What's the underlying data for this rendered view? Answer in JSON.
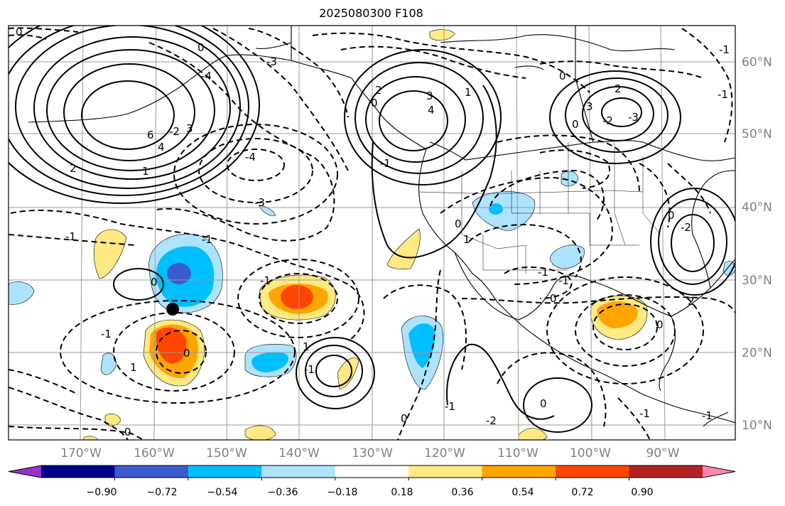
{
  "title": "2025080300 F108",
  "lon_labels": [
    "170°W",
    "160°W",
    "150°W",
    "140°W",
    "130°W",
    "120°W",
    "110°W",
    "100°W",
    "90°W"
  ],
  "lat_labels": [
    "60°N",
    "50°N",
    "40°N",
    "30°N",
    "20°N",
    "10°N"
  ],
  "colorbar": {
    "tick_labels": [
      "−0.90",
      "−0.72",
      "−0.54",
      "−0.36",
      "−0.18",
      "0.18",
      "0.36",
      "0.54",
      "0.72",
      "0.90"
    ],
    "colors": [
      "#9932cc",
      "#00008b",
      "#3a5bcc",
      "#00bfff",
      "#ade3ff",
      "#ffffff",
      "#ffe983",
      "#ffa500",
      "#ff4500",
      "#b22222",
      "#ff88aa"
    ]
  },
  "contour_labels": [
    "0",
    "-1",
    "-3",
    "-2",
    "-4",
    "2",
    "4",
    "6",
    "3",
    "1",
    "0",
    "-1",
    "-3",
    "-4",
    "1",
    "3",
    "4",
    "2",
    "0",
    "-1",
    "-3",
    "-2",
    "2",
    "3",
    "-1",
    "0",
    "-1",
    "0",
    "-1",
    "1",
    "0",
    "1",
    "-1",
    "0",
    "-1",
    "-2",
    "0",
    "-1",
    "0",
    "2",
    "0",
    "-1",
    "-1",
    "0",
    "1",
    "-1",
    "0",
    "-2",
    "-1",
    "0",
    "0"
  ],
  "markers": [
    {
      "name": "storm-center",
      "lon": -157.5,
      "lat": 26
    }
  ]
}
